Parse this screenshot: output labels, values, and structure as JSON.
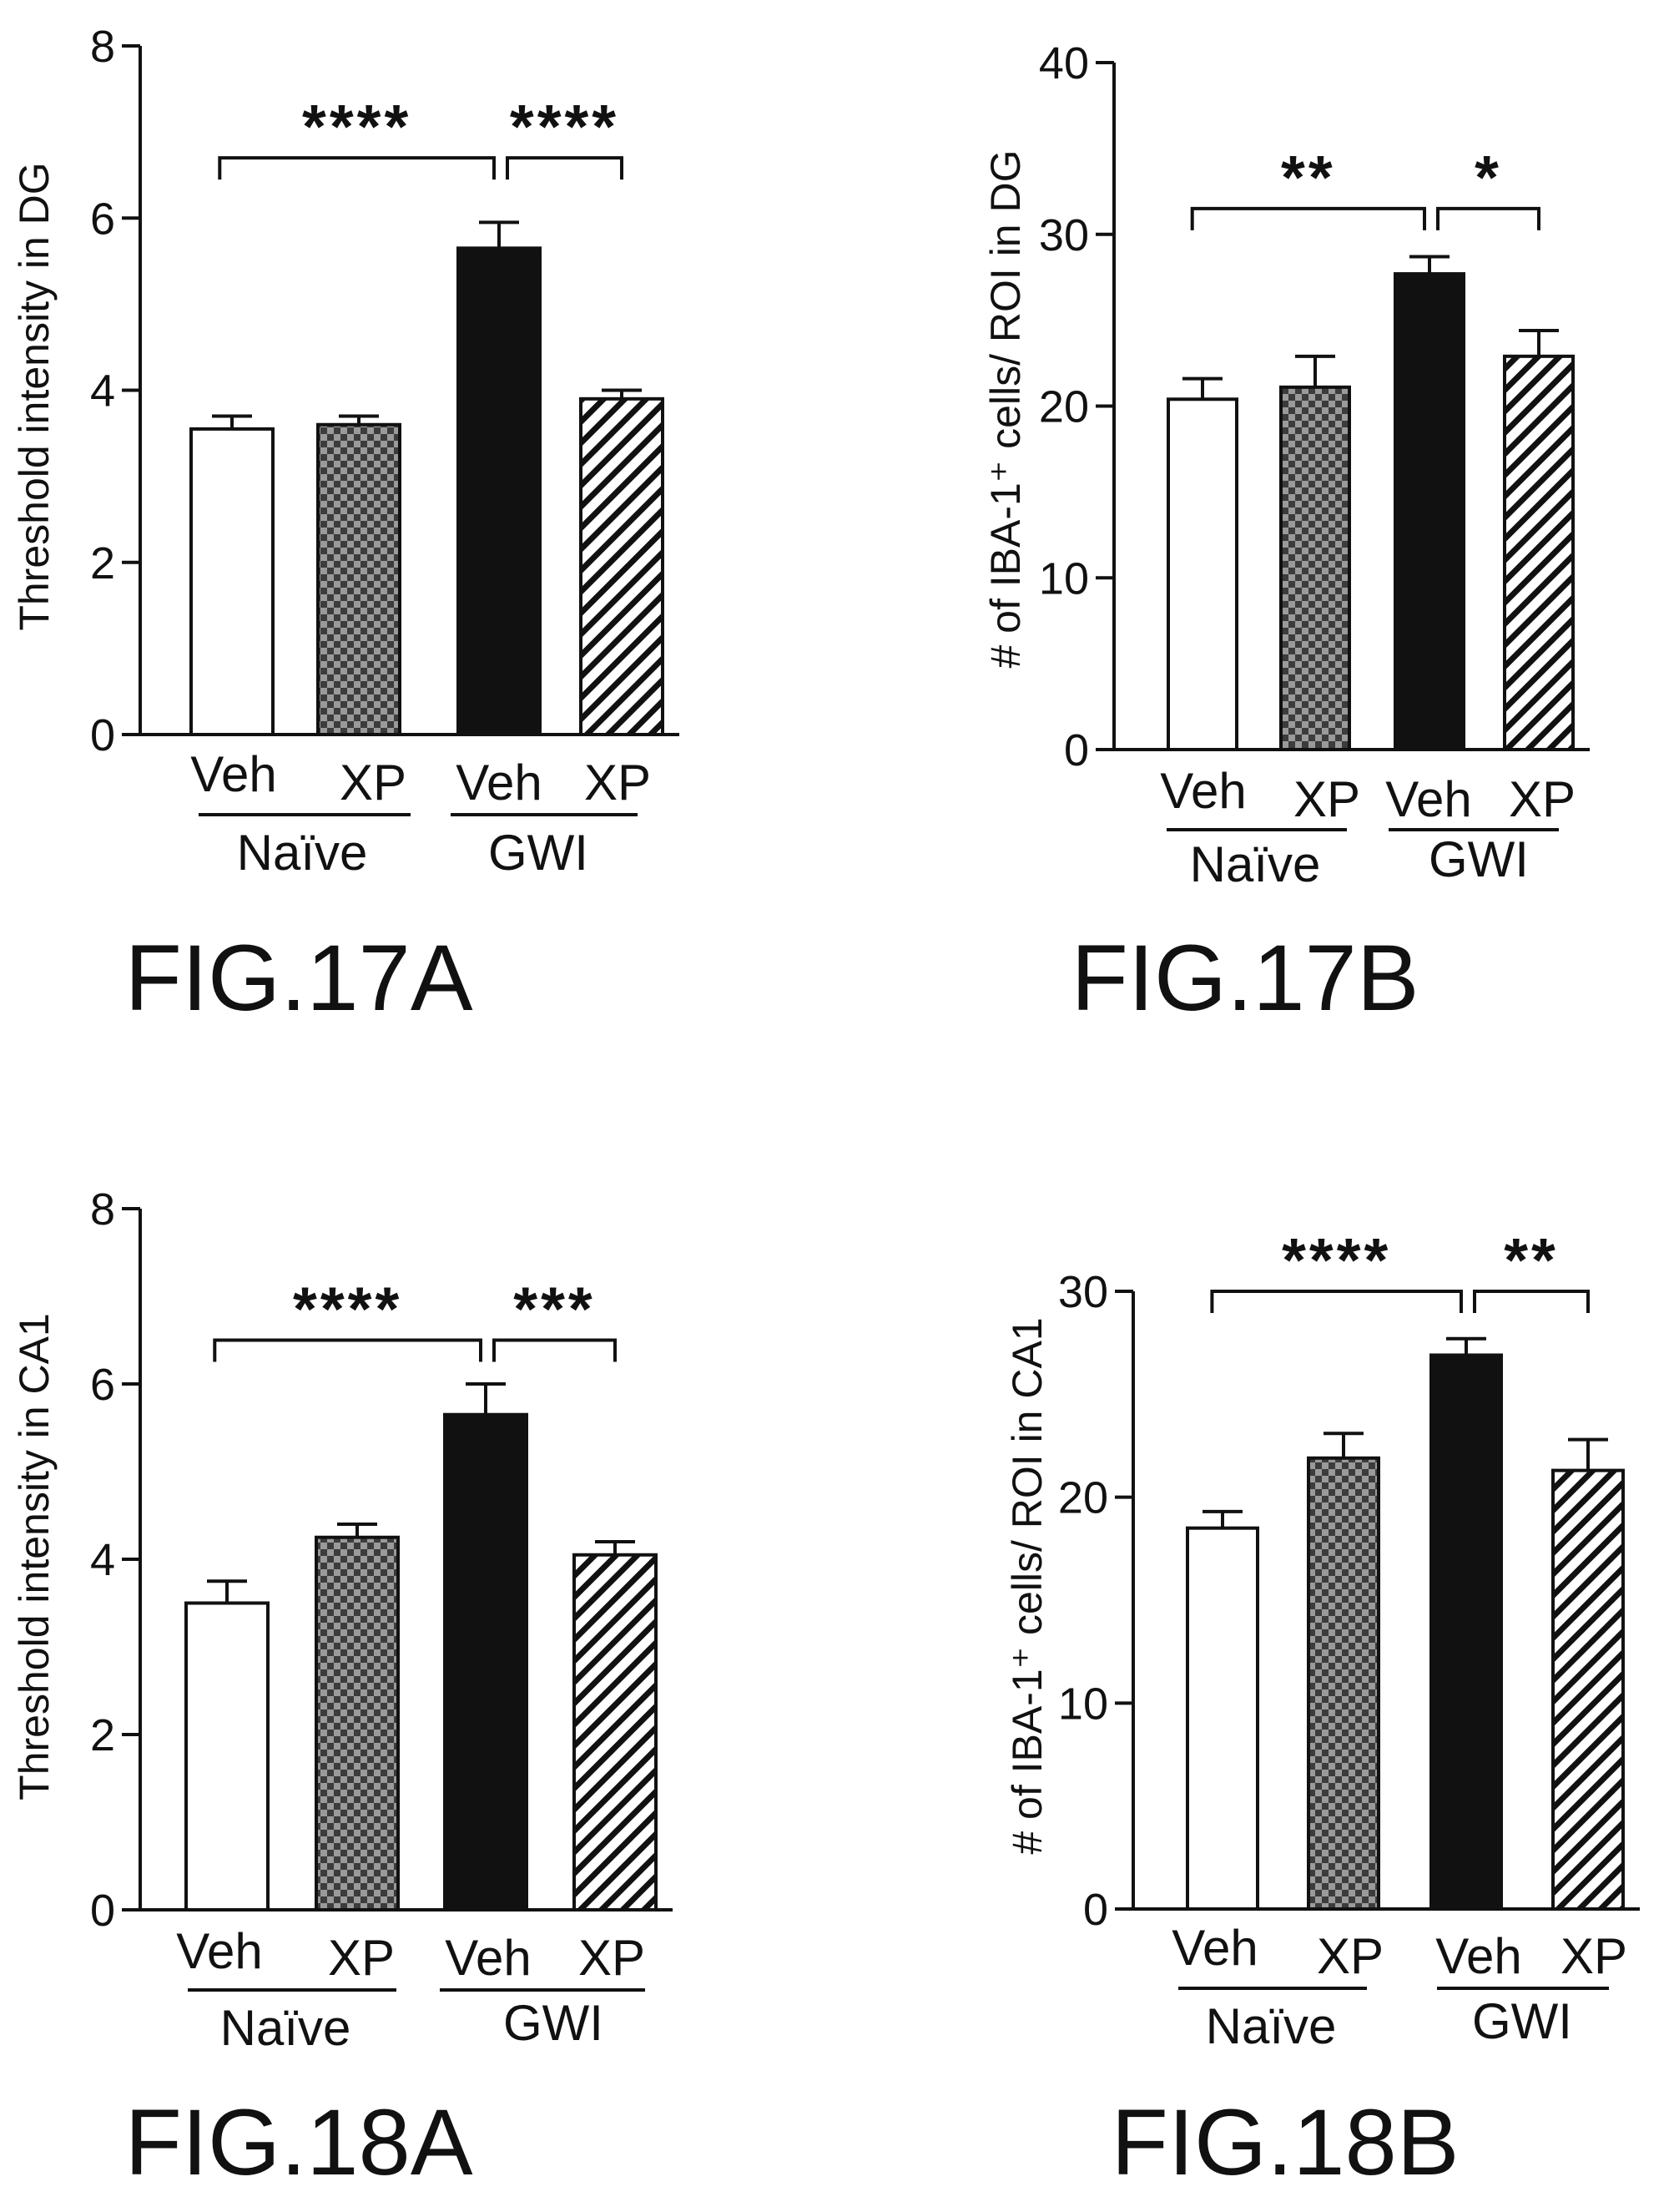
{
  "colors": {
    "ink": "#111111",
    "background": "#ffffff"
  },
  "chart_data": [
    {
      "id": "fig17a",
      "type": "bar",
      "figure_label": "FIG.17A",
      "ylabel": "Threshold intensity in DG",
      "ylim": [
        0,
        8
      ],
      "yticks": [
        "0",
        "2",
        "4",
        "6",
        "8"
      ],
      "categories": [
        "Veh",
        "XP",
        "Veh",
        "XP"
      ],
      "groups": [
        {
          "label": "Naïve",
          "categories": [
            0,
            1
          ]
        },
        {
          "label": "GWI",
          "categories": [
            2,
            3
          ]
        }
      ],
      "bar_fills": [
        "white",
        "checker",
        "black",
        "hatch"
      ],
      "values": [
        3.55,
        3.6,
        5.65,
        3.9
      ],
      "errors": [
        0.15,
        0.1,
        0.3,
        0.1
      ],
      "significance": [
        {
          "from": 0,
          "to": 2,
          "label": "****",
          "y": 6.7
        },
        {
          "from": 2,
          "to": 3,
          "label": "****",
          "y": 6.7
        }
      ]
    },
    {
      "id": "fig17b",
      "type": "bar",
      "figure_label": "FIG.17B",
      "ylabel": "# of IBA-1⁺ cells/ ROI in DG",
      "ylim": [
        0,
        40
      ],
      "yticks": [
        "0",
        "10",
        "20",
        "30",
        "40"
      ],
      "categories": [
        "Veh",
        "XP",
        "Veh",
        "XP"
      ],
      "groups": [
        {
          "label": "Naïve",
          "categories": [
            0,
            1
          ]
        },
        {
          "label": "GWI",
          "categories": [
            2,
            3
          ]
        }
      ],
      "bar_fills": [
        "white",
        "checker",
        "black",
        "hatch"
      ],
      "values": [
        20.4,
        21.1,
        27.7,
        22.9
      ],
      "errors": [
        1.2,
        1.8,
        1.0,
        1.5
      ],
      "significance": [
        {
          "from": 0,
          "to": 2,
          "label": "**",
          "y": 31.5
        },
        {
          "from": 2,
          "to": 3,
          "label": "*",
          "y": 31.5
        }
      ]
    },
    {
      "id": "fig18a",
      "type": "bar",
      "figure_label": "FIG.18A",
      "ylabel": "Threshold intensity in CA1",
      "ylim": [
        0,
        8
      ],
      "yticks": [
        "0",
        "2",
        "4",
        "6",
        "8"
      ],
      "categories": [
        "Veh",
        "XP",
        "Veh",
        "XP"
      ],
      "groups": [
        {
          "label": "Naïve",
          "categories": [
            0,
            1
          ]
        },
        {
          "label": "GWI",
          "categories": [
            2,
            3
          ]
        }
      ],
      "bar_fills": [
        "white",
        "checker",
        "black",
        "hatch"
      ],
      "values": [
        3.5,
        4.25,
        5.65,
        4.05
      ],
      "errors": [
        0.25,
        0.15,
        0.35,
        0.15
      ],
      "significance": [
        {
          "from": 0,
          "to": 2,
          "label": "****",
          "y": 6.5
        },
        {
          "from": 2,
          "to": 3,
          "label": "***",
          "y": 6.5
        }
      ]
    },
    {
      "id": "fig18b",
      "type": "bar",
      "figure_label": "FIG.18B",
      "ylabel": "# of IBA-1⁺ cells/ ROI in CA1",
      "ylim": [
        0,
        30
      ],
      "yticks": [
        "0",
        "10",
        "20",
        "30"
      ],
      "categories": [
        "Veh",
        "XP",
        "Veh",
        "XP"
      ],
      "groups": [
        {
          "label": "Naïve",
          "categories": [
            0,
            1
          ]
        },
        {
          "label": "GWI",
          "categories": [
            2,
            3
          ]
        }
      ],
      "bar_fills": [
        "white",
        "checker",
        "black",
        "hatch"
      ],
      "values": [
        18.5,
        21.9,
        26.9,
        21.3
      ],
      "errors": [
        0.8,
        1.2,
        0.8,
        1.5
      ],
      "significance": [
        {
          "from": 0,
          "to": 2,
          "label": "****",
          "y": 30.0
        },
        {
          "from": 2,
          "to": 3,
          "label": "**",
          "y": 30.0
        }
      ]
    }
  ]
}
